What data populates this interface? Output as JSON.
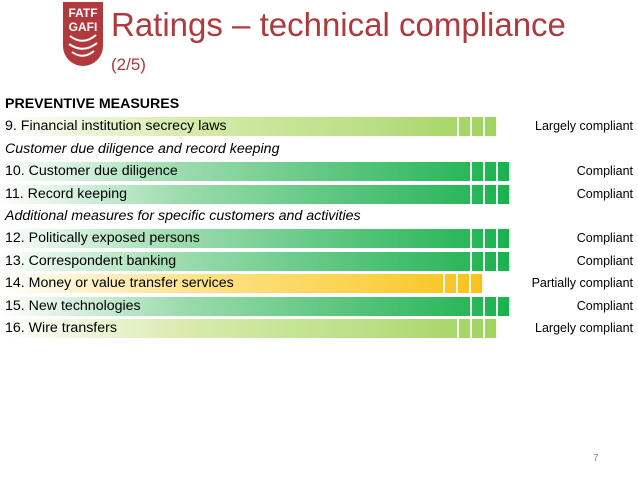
{
  "slide": {
    "logo_text": [
      "FATF",
      "GAFI"
    ],
    "title": "Ratings – technical compliance",
    "subtitle": "(2/5)",
    "page_number": "7"
  },
  "colors": {
    "title": "#b0393e",
    "largely_compliant": "#9fd35d",
    "compliant": "#19b24d",
    "partially_compliant": "#f8c21a"
  },
  "rows": [
    {
      "type": "header",
      "label": "PREVENTIVE MEASURES"
    },
    {
      "type": "item",
      "label": "9. Financial institution secrecy laws",
      "rating": "Largely compliant"
    },
    {
      "type": "section",
      "label": "Customer due diligence and record keeping"
    },
    {
      "type": "item",
      "label": "10. Customer due diligence",
      "rating": "Compliant"
    },
    {
      "type": "item",
      "label": "11. Record keeping",
      "rating": "Compliant"
    },
    {
      "type": "section",
      "label": "Additional measures for specific customers and activities"
    },
    {
      "type": "item",
      "label": "12. Politically exposed persons",
      "rating": "Compliant"
    },
    {
      "type": "item",
      "label": "13. Correspondent banking",
      "rating": "Compliant"
    },
    {
      "type": "item",
      "label": "14. Money or value transfer services",
      "rating": "Partially compliant"
    },
    {
      "type": "item",
      "label": "15. New technologies",
      "rating": "Compliant"
    },
    {
      "type": "item",
      "label": "16. Wire transfers",
      "rating": "Largely compliant"
    }
  ]
}
